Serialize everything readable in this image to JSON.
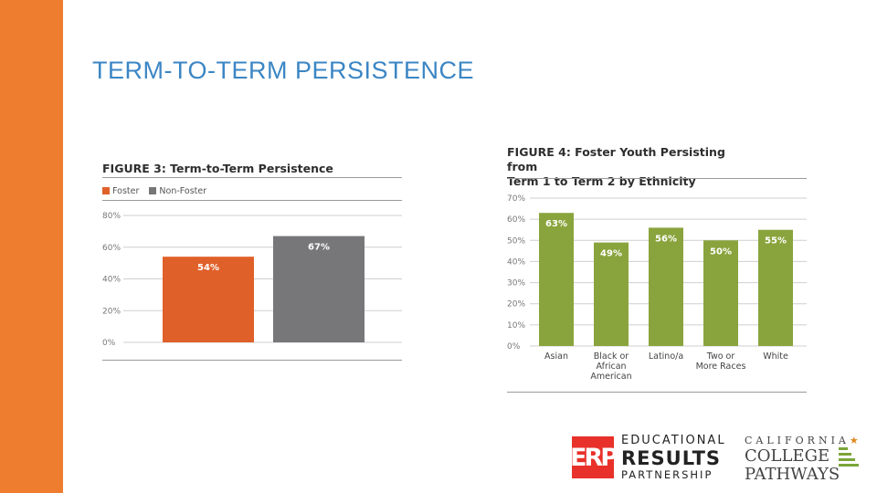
{
  "slide": {
    "title": "TERM-TO-TERM PERSISTENCE"
  },
  "colors": {
    "side_bar": "#ef7d30",
    "title": "#3b86c4",
    "foster": "#e0602a",
    "non_foster": "#77777a",
    "green": "#8aa43d",
    "grid": "#cfcfcf",
    "axis": "#999999"
  },
  "chart_data": [
    {
      "type": "bar",
      "title": "FIGURE 3: Term-to-Term Persistence",
      "legend": [
        "Foster",
        "Non-Foster"
      ],
      "categories": [
        "Foster",
        "Non-Foster"
      ],
      "values": [
        54,
        67
      ],
      "value_labels": [
        "54%",
        "67%"
      ],
      "ylim": [
        0,
        80
      ],
      "yticks": [
        0,
        20,
        40,
        60,
        80
      ],
      "ytick_labels": [
        "0%",
        "20%",
        "40%",
        "60%",
        "80%"
      ],
      "grid": true
    },
    {
      "type": "bar",
      "title_lines": [
        "FIGURE 4: Foster Youth Persisting from",
        "Term 1 to Term 2 by Ethnicity"
      ],
      "categories": [
        [
          "Asian"
        ],
        [
          "Black or",
          "African",
          "American"
        ],
        [
          "Latino/a"
        ],
        [
          "Two or",
          "More Races"
        ],
        [
          "White"
        ]
      ],
      "values": [
        63,
        49,
        56,
        50,
        55
      ],
      "value_labels": [
        "63%",
        "49%",
        "56%",
        "50%",
        "55%"
      ],
      "ylim": [
        0,
        70
      ],
      "yticks": [
        0,
        10,
        20,
        30,
        40,
        50,
        60,
        70
      ],
      "ytick_labels": [
        "0%",
        "10%",
        "20%",
        "30%",
        "40%",
        "50%",
        "60%",
        "70%"
      ],
      "grid": true
    }
  ],
  "logos": {
    "erp_mark": "ERP",
    "erp_line1": "EDUCATIONAL",
    "erp_line2": "RESULTS",
    "erp_line3": "PARTNERSHIP",
    "ccp_line1": "CALIFORNIA",
    "ccp_star": "★",
    "ccp_line2": "COLLEGE",
    "ccp_line3": "PATHWAYS"
  }
}
